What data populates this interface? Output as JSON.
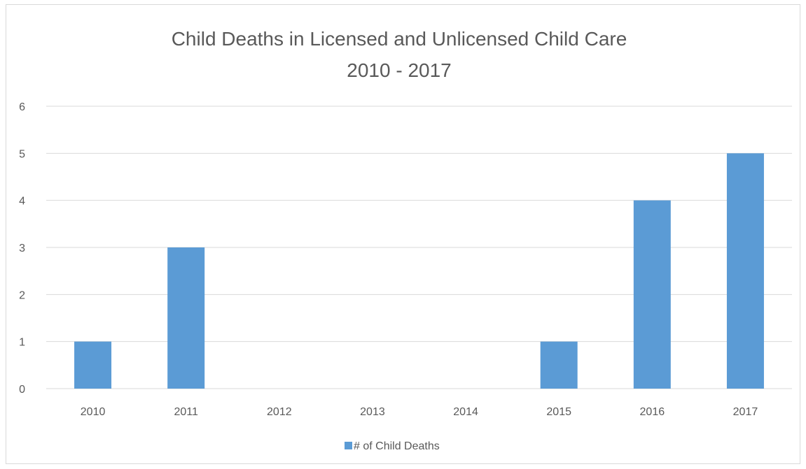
{
  "chart_data": {
    "type": "bar",
    "title": "Child Deaths in Licensed and Unlicensed Child Care",
    "subtitle": "2010 - 2017",
    "categories": [
      "2010",
      "2011",
      "2012",
      "2013",
      "2014",
      "2015",
      "2016",
      "2017"
    ],
    "series": [
      {
        "name": "# of Child Deaths",
        "values": [
          1,
          3,
          0,
          0,
          0,
          1,
          4,
          5
        ],
        "color": "#5b9bd5"
      }
    ],
    "ylim": [
      0,
      6
    ],
    "yticks": [
      "0",
      "1",
      "2",
      "3",
      "4",
      "5",
      "6"
    ],
    "grid": true,
    "legend_position": "bottom"
  }
}
